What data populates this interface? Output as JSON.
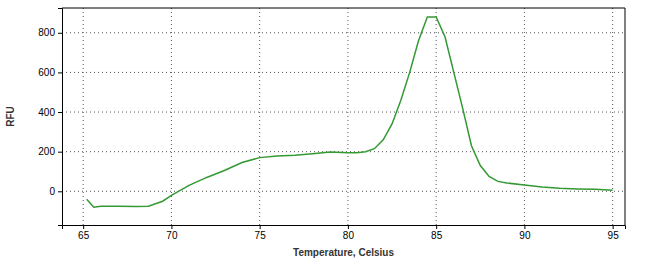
{
  "chart_data": {
    "type": "line",
    "x_label": "Temperature, Celsius",
    "y_label": "RFU",
    "x": [
      65.2,
      65.6,
      66,
      67,
      68,
      68.7,
      69.5,
      70,
      71,
      72,
      73,
      74,
      75,
      76,
      77,
      78,
      79,
      80,
      80.5,
      81,
      81.5,
      82,
      82.5,
      83,
      83.5,
      84,
      84.5,
      85,
      85.5,
      86,
      86.5,
      87,
      87.5,
      88,
      88.5,
      89,
      90,
      91,
      92,
      93,
      94,
      95
    ],
    "values": [
      -40,
      -80,
      -75,
      -75,
      -77,
      -75,
      -50,
      -20,
      30,
      70,
      105,
      145,
      170,
      178,
      182,
      190,
      198,
      195,
      195,
      200,
      215,
      260,
      340,
      460,
      600,
      760,
      880,
      880,
      780,
      600,
      420,
      230,
      130,
      75,
      50,
      42,
      32,
      22,
      15,
      12,
      10,
      5
    ],
    "color": "#339933",
    "xlim": [
      63.8,
      95.7
    ],
    "xticks": [
      65,
      70,
      75,
      80,
      85,
      90,
      95
    ],
    "ylim": [
      -170,
      925
    ],
    "yticks": [
      0,
      200,
      400,
      600,
      800
    ],
    "grid": true
  }
}
